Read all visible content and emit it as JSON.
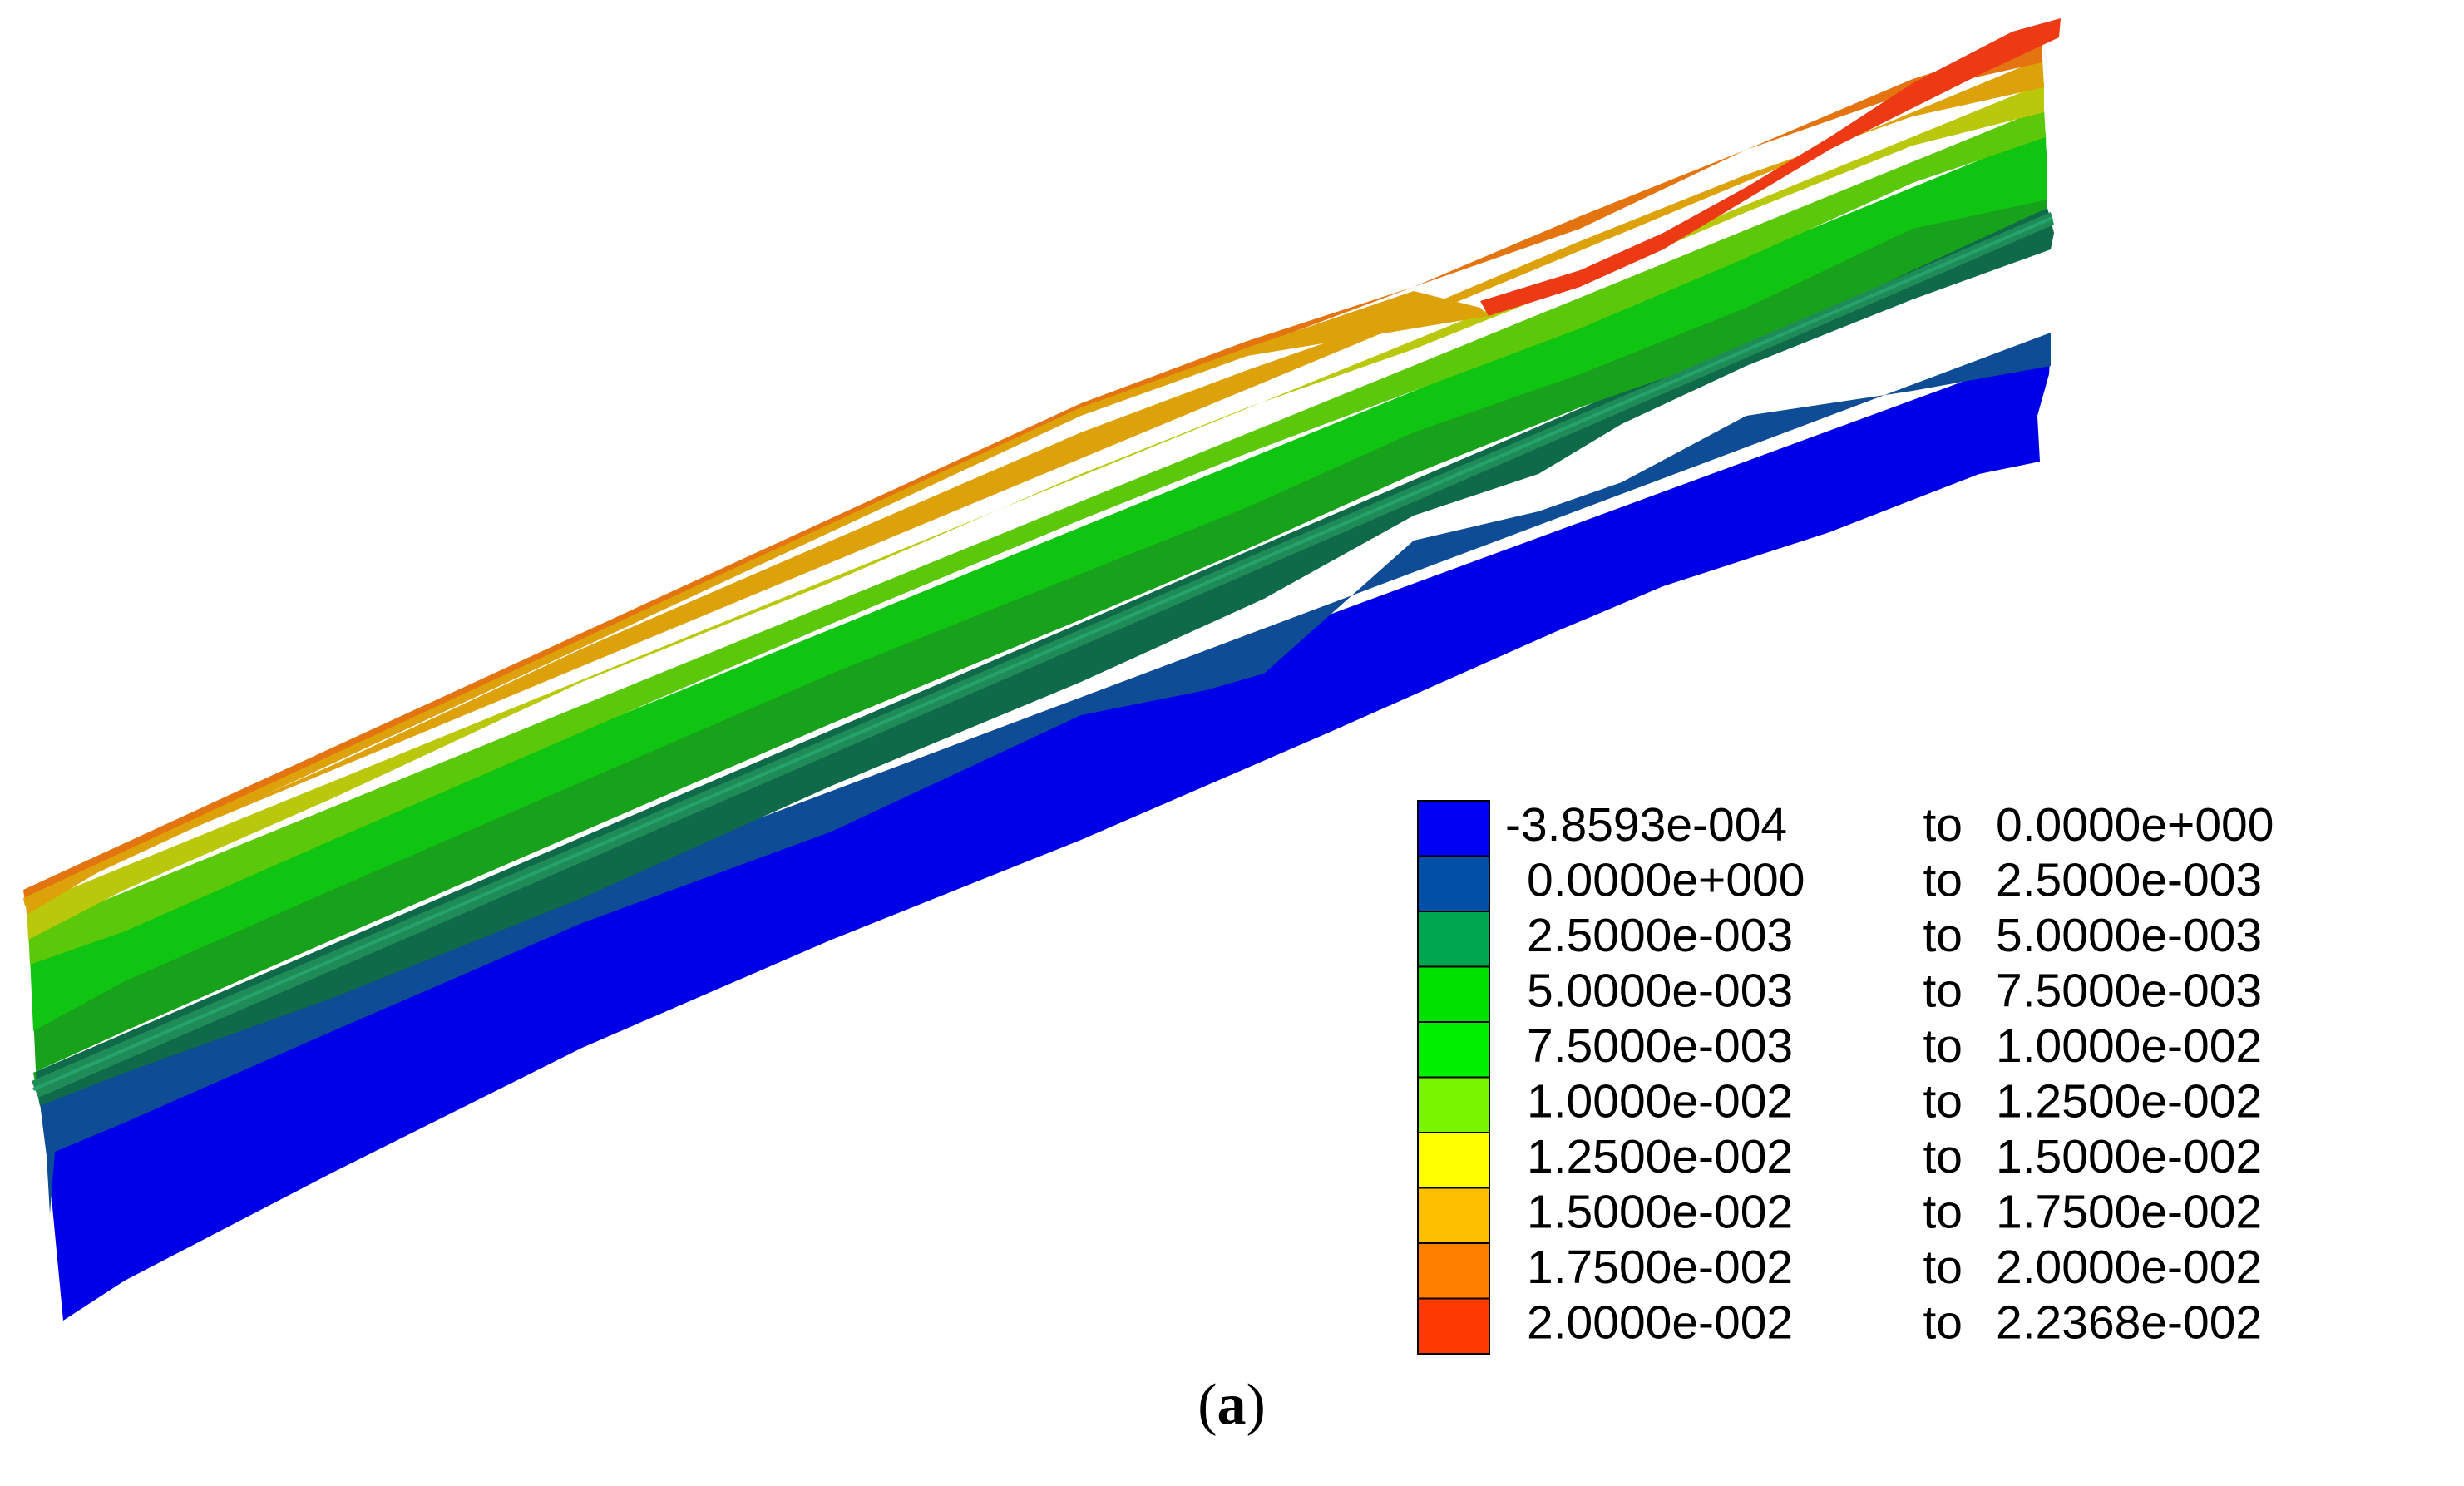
{
  "figure": {
    "caption_open": "(",
    "caption_letter": "a",
    "caption_close": ")"
  },
  "legend": {
    "entries": [
      {
        "from": "-3.8593e-004",
        "to_word": "to",
        "to": "0.0000e+000",
        "color": "#0000F5"
      },
      {
        "from": "0.0000e+000",
        "to_word": "to",
        "to": "2.5000e-003",
        "color": "#0050A8"
      },
      {
        "from": "2.5000e-003",
        "to_word": "to",
        "to": "5.0000e-003",
        "color": "#00A650"
      },
      {
        "from": "5.0000e-003",
        "to_word": "to",
        "to": "7.5000e-003",
        "color": "#00E100"
      },
      {
        "from": "7.5000e-003",
        "to_word": "to",
        "to": "1.0000e-002",
        "color": "#00F000"
      },
      {
        "from": "1.0000e-002",
        "to_word": "to",
        "to": "1.2500e-002",
        "color": "#7AF500"
      },
      {
        "from": "1.2500e-002",
        "to_word": "to",
        "to": "1.5000e-002",
        "color": "#FFFF00"
      },
      {
        "from": "1.5000e-002",
        "to_word": "to",
        "to": "1.7500e-002",
        "color": "#FFBE00"
      },
      {
        "from": "1.7500e-002",
        "to_word": "to",
        "to": "2.0000e-002",
        "color": "#FF8000"
      },
      {
        "from": "2.0000e-002",
        "to_word": "to",
        "to": "2.2368e-002",
        "color": "#FF3A00"
      }
    ]
  },
  "model_colors": {
    "layer1": "#0000E8",
    "layer2": "#0F4C96",
    "layer3": "#0E6A48",
    "layer4": "#18A21C",
    "layer5": "#10C412",
    "layer6": "#5CC80A",
    "layer7": "#B9C80A",
    "layer8": "#DDA10A",
    "layer9": "#E4740F",
    "layer10": "#EE3A14",
    "joint": "#1F8C58",
    "joint_edge": "#26A36C"
  }
}
